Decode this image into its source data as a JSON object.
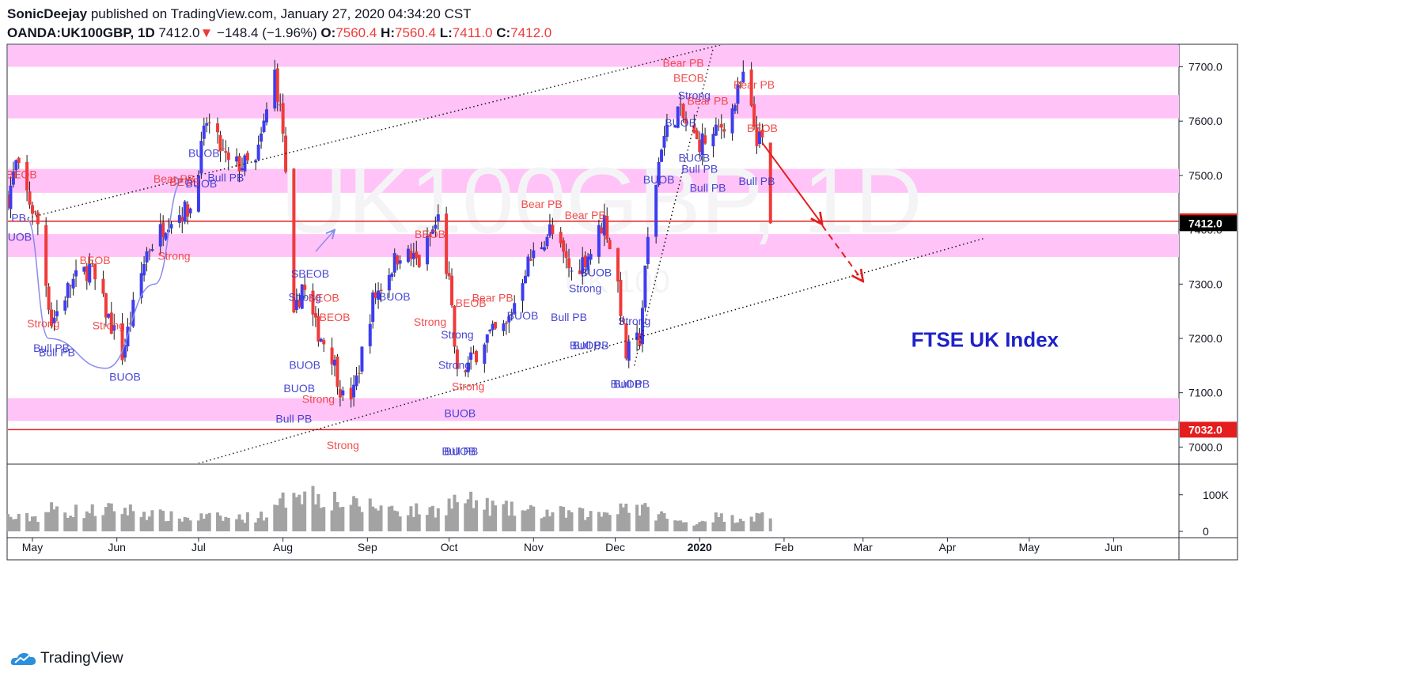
{
  "header": {
    "author": "SonicDeejay",
    "published": "published on TradingView.com, January 27, 2020 04:34:20 CST",
    "symbol": "OANDA:UK100GBP, 1D",
    "last": "7412.0",
    "arrow": "▼",
    "change": "−148.4 (−1.96%)",
    "o_label": "O:",
    "o_value": "7560.4",
    "h_label": "H:",
    "h_value": "7560.4",
    "l_label": "L:",
    "l_value": "7411.0",
    "c_label": "C:",
    "c_value": "7412.0"
  },
  "footer": {
    "brand": "TradingView",
    "logo_icon": "tradingview-cloud-icon"
  },
  "colors": {
    "bull": "#3d3df0",
    "bear": "#f03a3a",
    "zone": "#ffc3f7",
    "hline": "#e41e1e",
    "volume": "#a3a3a3",
    "annot_blue": "#3333cc"
  },
  "chart_data": {
    "type": "candlestick",
    "title": "FTSE UK Index",
    "watermark": "UK100GBP, 1D",
    "watermark_sub": "UK 100",
    "xlim": [
      "2019-04-22",
      "2020-06-25"
    ],
    "ylim": [
      6970,
      7740
    ],
    "y_ticks": [
      "7700.0",
      "7600.0",
      "7500.0",
      "7400.0",
      "7300.0",
      "7200.0",
      "7100.0",
      "7000.0"
    ],
    "x_ticks": [
      {
        "date": "2019-05-01",
        "label": "May"
      },
      {
        "date": "2019-06-01",
        "label": "Jun"
      },
      {
        "date": "2019-07-01",
        "label": "Jul"
      },
      {
        "date": "2019-08-01",
        "label": "Aug"
      },
      {
        "date": "2019-09-01",
        "label": "Sep"
      },
      {
        "date": "2019-10-01",
        "label": "Oct"
      },
      {
        "date": "2019-11-01",
        "label": "Nov"
      },
      {
        "date": "2019-12-01",
        "label": "Dec"
      },
      {
        "date": "2020-01-01",
        "label": "2020"
      },
      {
        "date": "2020-02-01",
        "label": "Feb"
      },
      {
        "date": "2020-03-01",
        "label": "Mar"
      },
      {
        "date": "2020-04-01",
        "label": "Apr"
      },
      {
        "date": "2020-05-01",
        "label": "May"
      },
      {
        "date": "2020-06-01",
        "label": "Jun"
      }
    ],
    "price_labels": [
      {
        "value": 7415.7,
        "label": "7415.7",
        "style": "red"
      },
      {
        "value": 7412.0,
        "label": "7412.0",
        "style": "black"
      },
      {
        "value": 7032.0,
        "label": "7032.0",
        "style": "red"
      }
    ],
    "horizontal_lines": [
      7415.7,
      7032.0
    ],
    "zones": [
      [
        7700,
        7742
      ],
      [
        7605,
        7648
      ],
      [
        7468,
        7512
      ],
      [
        7350,
        7392
      ],
      [
        7048,
        7090
      ]
    ],
    "volume_ticks": [
      "100K",
      "0"
    ],
    "volume_max": 160000,
    "anchors": [
      {
        "date": "2019-04-22",
        "price": 7460,
        "vol": 40000
      },
      {
        "date": "2019-04-25",
        "price": 7520,
        "vol": 35000
      },
      {
        "date": "2019-05-03",
        "price": 7410,
        "vol": 40000
      },
      {
        "date": "2019-05-08",
        "price": 7230,
        "vol": 60000
      },
      {
        "date": "2019-05-15",
        "price": 7300,
        "vol": 55000
      },
      {
        "date": "2019-05-22",
        "price": 7330,
        "vol": 55000
      },
      {
        "date": "2019-06-03",
        "price": 7170,
        "vol": 60000
      },
      {
        "date": "2019-06-12",
        "price": 7360,
        "vol": 50000
      },
      {
        "date": "2019-06-20",
        "price": 7420,
        "vol": 40000
      },
      {
        "date": "2019-06-28",
        "price": 7440,
        "vol": 35000
      },
      {
        "date": "2019-07-04",
        "price": 7600,
        "vol": 40000
      },
      {
        "date": "2019-07-12",
        "price": 7520,
        "vol": 35000
      },
      {
        "date": "2019-07-22",
        "price": 7520,
        "vol": 40000
      },
      {
        "date": "2019-07-29",
        "price": 7690,
        "vol": 55000
      },
      {
        "date": "2019-08-01",
        "price": 7580,
        "vol": 80000
      },
      {
        "date": "2019-08-05",
        "price": 7230,
        "vol": 130000
      },
      {
        "date": "2019-08-08",
        "price": 7300,
        "vol": 110000
      },
      {
        "date": "2019-08-13",
        "price": 7220,
        "vol": 100000
      },
      {
        "date": "2019-08-19",
        "price": 7170,
        "vol": 90000
      },
      {
        "date": "2019-08-23",
        "price": 7090,
        "vol": 80000
      },
      {
        "date": "2019-08-27",
        "price": 7100,
        "vol": 70000
      },
      {
        "date": "2019-09-03",
        "price": 7270,
        "vol": 70000
      },
      {
        "date": "2019-09-13",
        "price": 7360,
        "vol": 60000
      },
      {
        "date": "2019-09-20",
        "price": 7340,
        "vol": 55000
      },
      {
        "date": "2019-09-27",
        "price": 7420,
        "vol": 60000
      },
      {
        "date": "2019-10-01",
        "price": 7300,
        "vol": 75000
      },
      {
        "date": "2019-10-04",
        "price": 7130,
        "vol": 85000
      },
      {
        "date": "2019-10-08",
        "price": 7150,
        "vol": 80000
      },
      {
        "date": "2019-10-14",
        "price": 7200,
        "vol": 70000
      },
      {
        "date": "2019-10-22",
        "price": 7220,
        "vol": 60000
      },
      {
        "date": "2019-10-29",
        "price": 7330,
        "vol": 55000
      },
      {
        "date": "2019-11-07",
        "price": 7400,
        "vol": 50000
      },
      {
        "date": "2019-11-15",
        "price": 7320,
        "vol": 50000
      },
      {
        "date": "2019-11-22",
        "price": 7360,
        "vol": 45000
      },
      {
        "date": "2019-11-27",
        "price": 7420,
        "vol": 50000
      },
      {
        "date": "2019-12-02",
        "price": 7300,
        "vol": 70000
      },
      {
        "date": "2019-12-05",
        "price": 7170,
        "vol": 75000
      },
      {
        "date": "2019-12-10",
        "price": 7200,
        "vol": 60000
      },
      {
        "date": "2019-12-13",
        "price": 7380,
        "vol": 55000
      },
      {
        "date": "2019-12-18",
        "price": 7560,
        "vol": 45000
      },
      {
        "date": "2019-12-24",
        "price": 7620,
        "vol": 25000
      },
      {
        "date": "2019-12-31",
        "price": 7560,
        "vol": 25000
      },
      {
        "date": "2020-01-06",
        "price": 7570,
        "vol": 40000
      },
      {
        "date": "2020-01-13",
        "price": 7620,
        "vol": 35000
      },
      {
        "date": "2020-01-17",
        "price": 7680,
        "vol": 40000
      },
      {
        "date": "2020-01-22",
        "price": 7570,
        "vol": 40000
      },
      {
        "date": "2020-01-24",
        "price": 7560,
        "vol": 45000
      },
      {
        "date": "2020-01-27",
        "price": 7412,
        "vol": 30000
      }
    ],
    "annotations": [
      {
        "text": "BEOB",
        "date": "2019-04-27",
        "price": 7495,
        "c": "bear"
      },
      {
        "text": "Bull PB",
        "date": "2019-05-08",
        "price": 7175,
        "c": "bull"
      },
      {
        "text": "Bull PB",
        "date": "2019-05-10",
        "price": 7167,
        "c": "bull"
      },
      {
        "text": "BEOB",
        "date": "2019-05-24",
        "price": 7337,
        "c": "bear"
      },
      {
        "text": "Strong",
        "date": "2019-05-29",
        "price": 7217,
        "c": "bear"
      },
      {
        "text": "BUOB",
        "date": "2019-06-04",
        "price": 7122,
        "c": "bull"
      },
      {
        "text": "Bear PB",
        "date": "2019-06-22",
        "price": 7487,
        "c": "bear"
      },
      {
        "text": "BEOB",
        "date": "2019-06-26",
        "price": 7481,
        "c": "bear"
      },
      {
        "text": "Strong",
        "date": "2019-06-22",
        "price": 7345,
        "c": "bear"
      },
      {
        "text": "BUOB",
        "date": "2019-07-02",
        "price": 7478,
        "c": "bull"
      },
      {
        "text": "BUOB",
        "date": "2019-07-03",
        "price": 7534,
        "c": "bull"
      },
      {
        "text": "Bull PB",
        "date": "2019-07-11",
        "price": 7489,
        "c": "bull"
      },
      {
        "text": "Strong",
        "date": "2019-08-09",
        "price": 7269,
        "c": "bull"
      },
      {
        "text": "SBEOB",
        "date": "2019-08-11",
        "price": 7312,
        "c": "bull"
      },
      {
        "text": "BEOB",
        "date": "2019-08-16",
        "price": 7268,
        "c": "bear"
      },
      {
        "text": "BEOB",
        "date": "2019-08-20",
        "price": 7232,
        "c": "bear"
      },
      {
        "text": "BUOB",
        "date": "2019-08-09",
        "price": 7144,
        "c": "bull"
      },
      {
        "text": "BUOB",
        "date": "2019-08-07",
        "price": 7101,
        "c": "bull"
      },
      {
        "text": "Strong",
        "date": "2019-08-14",
        "price": 7081,
        "c": "bear"
      },
      {
        "text": "Bull PB",
        "date": "2019-08-05",
        "price": 7045,
        "c": "bull"
      },
      {
        "text": "Strong",
        "date": "2019-08-23",
        "price": 6996,
        "c": "bear"
      },
      {
        "text": "BUOB",
        "date": "2019-09-11",
        "price": 7270,
        "c": "bull"
      },
      {
        "text": "BEOB",
        "date": "2019-09-24",
        "price": 7385,
        "c": "bear"
      },
      {
        "text": "Strong",
        "date": "2019-09-24",
        "price": 7223,
        "c": "bear"
      },
      {
        "text": "Strong",
        "date": "2019-10-04",
        "price": 7200,
        "c": "bull"
      },
      {
        "text": "BEOB",
        "date": "2019-10-09",
        "price": 7258,
        "c": "bear"
      },
      {
        "text": "Bear PB",
        "date": "2019-10-17",
        "price": 7268,
        "c": "bear"
      },
      {
        "text": "Strong",
        "date": "2019-10-03",
        "price": 7144,
        "c": "bull"
      },
      {
        "text": "Strong",
        "date": "2019-10-08",
        "price": 7105,
        "c": "bear"
      },
      {
        "text": "BUOB",
        "date": "2019-10-05",
        "price": 7055,
        "c": "bull"
      },
      {
        "text": "BUOB",
        "date": "2019-10-05",
        "price": 6985,
        "c": "bull"
      },
      {
        "text": "Bull PB",
        "date": "2019-10-05",
        "price": 6985,
        "c": "bull"
      },
      {
        "text": "BUOB",
        "date": "2019-10-28",
        "price": 7235,
        "c": "bull"
      },
      {
        "text": "Bear PB",
        "date": "2019-11-04",
        "price": 7440,
        "c": "bear"
      },
      {
        "text": "Bear PB",
        "date": "2019-11-20",
        "price": 7420,
        "c": "bear"
      },
      {
        "text": "Bull PB",
        "date": "2019-11-14",
        "price": 7232,
        "c": "bull"
      },
      {
        "text": "Strong",
        "date": "2019-11-20",
        "price": 7285,
        "c": "bull"
      },
      {
        "text": "BUOB",
        "date": "2019-11-24",
        "price": 7314,
        "c": "bull"
      },
      {
        "text": "BUOB",
        "date": "2019-11-20",
        "price": 7180,
        "c": "bull"
      },
      {
        "text": "Bull PB",
        "date": "2019-11-22",
        "price": 7180,
        "c": "bull"
      },
      {
        "text": "Strong",
        "date": "2019-12-08",
        "price": 7225,
        "c": "bull"
      },
      {
        "text": "BUOB",
        "date": "2019-12-05",
        "price": 7109,
        "c": "bull"
      },
      {
        "text": "Bull PB",
        "date": "2019-12-07",
        "price": 7109,
        "c": "bull"
      },
      {
        "text": "BUOB",
        "date": "2019-12-17",
        "price": 7485,
        "c": "bull"
      },
      {
        "text": "Bear PB",
        "date": "2019-12-26",
        "price": 7700,
        "c": "bear"
      },
      {
        "text": "BEOB",
        "date": "2019-12-28",
        "price": 7672,
        "c": "bear"
      },
      {
        "text": "Strong",
        "date": "2019-12-30",
        "price": 7640,
        "c": "bull"
      },
      {
        "text": "Bear PB",
        "date": "2020-01-04",
        "price": 7630,
        "c": "bear"
      },
      {
        "text": "BUOB",
        "date": "2019-12-25",
        "price": 7590,
        "c": "bull"
      },
      {
        "text": "BUOB",
        "date": "2019-12-30",
        "price": 7525,
        "c": "bull"
      },
      {
        "text": "Bull PB",
        "date": "2020-01-01",
        "price": 7505,
        "c": "bull"
      },
      {
        "text": "Bull PB",
        "date": "2020-01-04",
        "price": 7470,
        "c": "bull"
      },
      {
        "text": "Bear PB",
        "date": "2020-01-21",
        "price": 7660,
        "c": "bear"
      },
      {
        "text": "BEOB",
        "date": "2020-01-24",
        "price": 7580,
        "c": "bear"
      },
      {
        "text": "Bull PB",
        "date": "2020-01-22",
        "price": 7482,
        "c": "bull"
      },
      {
        "text": "Strong",
        "date": "2019-05-05",
        "price": 7220,
        "c": "bear"
      },
      {
        "text": "Bull PB",
        "date": "2019-04-22",
        "price": 7415,
        "c": "bull"
      },
      {
        "text": "BUOB",
        "date": "2019-04-25",
        "price": 7380,
        "c": "bull"
      }
    ],
    "drawings": {
      "channel_upper": [
        {
          "date": "2019-04-28",
          "price": 7420
        },
        {
          "date": "2020-01-18",
          "price": 7752
        }
      ],
      "channel_lower": [
        {
          "date": "2019-07-01",
          "price": 6970
        },
        {
          "date": "2020-04-15",
          "price": 7385
        }
      ],
      "steep_line": [
        {
          "date": "2019-12-08",
          "price": 7150
        },
        {
          "date": "2020-01-06",
          "price": 7735
        }
      ],
      "solid_arrow": [
        {
          "date": "2020-01-24",
          "price": 7560
        },
        {
          "date": "2020-02-15",
          "price": 7410
        }
      ],
      "dashed_arrow": [
        {
          "date": "2020-02-15",
          "price": 7408
        },
        {
          "date": "2020-03-01",
          "price": 7305
        }
      ],
      "blue_curve": [
        {
          "date": "2019-04-29",
          "price": 7420
        },
        {
          "date": "2019-05-07",
          "price": 7200
        },
        {
          "date": "2019-05-28",
          "price": 7145
        },
        {
          "date": "2019-06-15",
          "price": 7300
        },
        {
          "date": "2019-06-25",
          "price": 7490
        }
      ],
      "blue_arrow_small": [
        {
          "date": "2019-08-13",
          "price": 7360
        },
        {
          "date": "2019-08-20",
          "price": 7400
        }
      ]
    }
  }
}
